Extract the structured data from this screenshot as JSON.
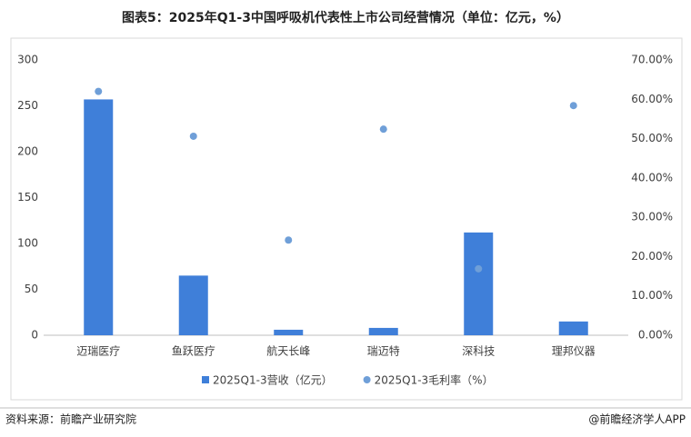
{
  "chart_data": {
    "type": "bar",
    "title": "图表5：2025年Q1-3中国呼吸机代表性上市公司经营情况（单位：亿元，%）",
    "categories": [
      "迈瑞医疗",
      "鱼跃医疗",
      "航天长峰",
      "瑞迈特",
      "深科技",
      "理邦仪器"
    ],
    "series": [
      {
        "name": "2025Q1-3营收（亿元）",
        "color": "#3f7fd9",
        "type": "bar",
        "values": [
          257,
          65,
          6,
          8,
          112,
          15
        ]
      },
      {
        "name": "2025Q1-3毛利率（%）",
        "color": "#6f9fd8",
        "type": "scatter",
        "axis": "y2",
        "values": [
          62,
          50.6,
          24.2,
          52.4,
          16.9,
          58.4
        ]
      }
    ],
    "ylim": [
      0,
      300
    ],
    "yticks": [
      0,
      50,
      100,
      150,
      200,
      250,
      300
    ],
    "y2lim": [
      0,
      70
    ],
    "y2ticks": [
      {
        "value": 0,
        "label": "0.00%"
      },
      {
        "value": 10,
        "label": "10.00%"
      },
      {
        "value": 20,
        "label": "20.00%"
      },
      {
        "value": 30,
        "label": "30.00%"
      },
      {
        "value": 40,
        "label": "40.00%"
      },
      {
        "value": 50,
        "label": "50.00%"
      },
      {
        "value": 60,
        "label": "60.00%"
      },
      {
        "value": 70,
        "label": "70.00%"
      }
    ],
    "grid": false,
    "legend": "bottom",
    "source": "资料来源：前瞻产业研究院",
    "credit": "@前瞻经济学人APP"
  }
}
